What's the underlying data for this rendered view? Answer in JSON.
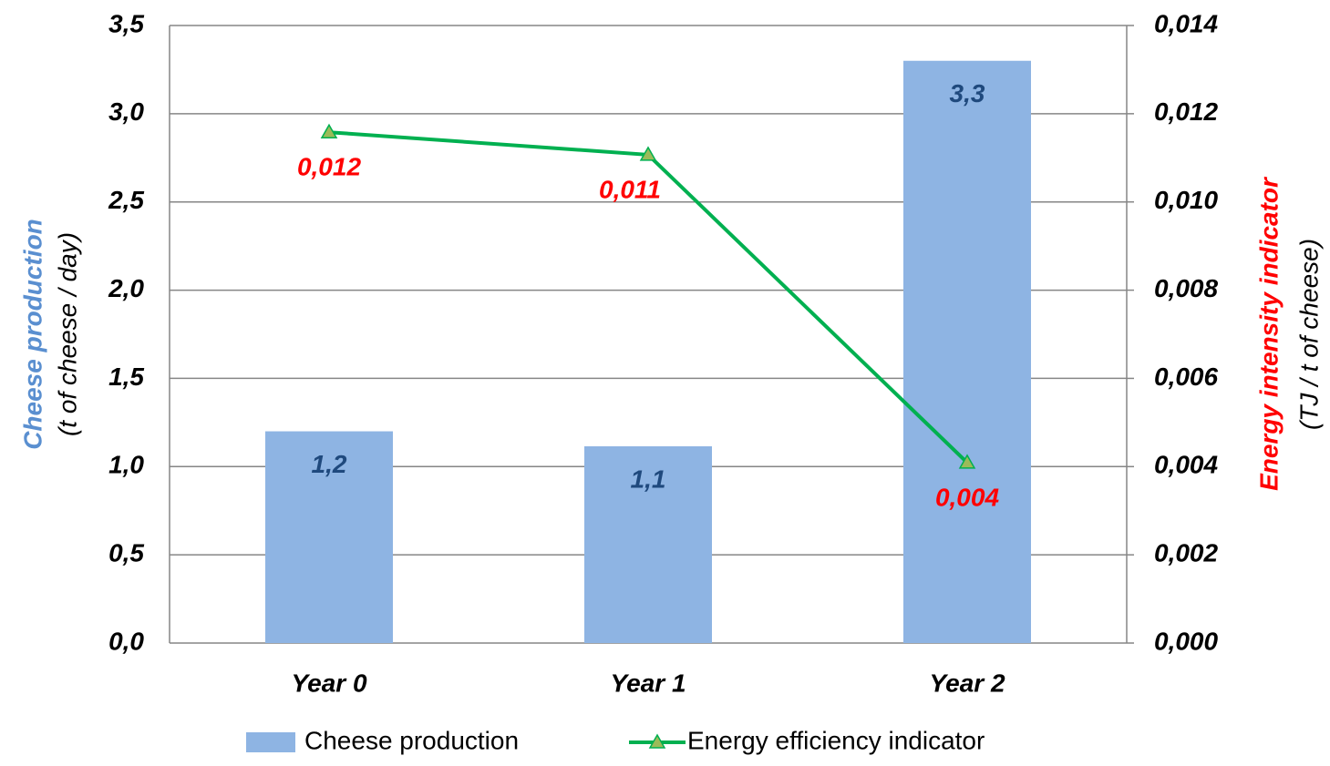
{
  "chart_data": {
    "type": "bar",
    "categories": [
      "Year 0",
      "Year 1",
      "Year 2"
    ],
    "ylabel": "Cheese production",
    "ylabel_unit": "(t of cheese / day)",
    "y2label": "Energy intensity indicator",
    "y2label_unit": "(TJ / t of cheese)",
    "ylim": [
      0,
      3.5
    ],
    "yticks": [
      {
        "value": 0,
        "label": "0,0"
      },
      {
        "value": 0.5,
        "label": "0,5"
      },
      {
        "value": 1,
        "label": "1,0"
      },
      {
        "value": 1.5,
        "label": "1,5"
      },
      {
        "value": 2,
        "label": "2,0"
      },
      {
        "value": 2.5,
        "label": "2,5"
      },
      {
        "value": 3,
        "label": "3,0"
      },
      {
        "value": 3.5,
        "label": "3,5"
      }
    ],
    "y2lim": [
      0,
      0.014
    ],
    "y2ticks": [
      {
        "value": 0,
        "label": "0,000"
      },
      {
        "value": 0.002,
        "label": "0,002"
      },
      {
        "value": 0.004,
        "label": "0,004"
      },
      {
        "value": 0.006,
        "label": "0,006"
      },
      {
        "value": 0.008,
        "label": "0,008"
      },
      {
        "value": 0.01,
        "label": "0,010"
      },
      {
        "value": 0.012,
        "label": "0,012"
      },
      {
        "value": 0.014,
        "label": "0,014"
      }
    ],
    "grid": true,
    "legend": "bottom",
    "series": [
      {
        "name": "Cheese production",
        "type": "bar",
        "color": "#8eb4e3",
        "label_color": "#1f497d",
        "values": [
          1.2,
          1.115,
          3.3
        ],
        "value_labels": [
          "1,2",
          "1,1",
          "3,3"
        ]
      },
      {
        "name": "Energy efficiency indicator",
        "type": "line",
        "axis": "y2",
        "color": "#00b050",
        "marker_color": "#9bbb59",
        "label_color": "#ff0000",
        "values": [
          0.01158,
          0.01107,
          0.00409
        ],
        "value_labels": [
          "0,012",
          "0,011",
          "0,004"
        ]
      }
    ]
  }
}
